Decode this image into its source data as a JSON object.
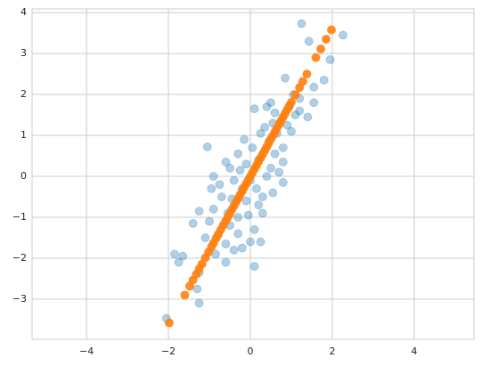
{
  "chart_data": {
    "type": "scatter",
    "xlim": [
      -5.33,
      5.46
    ],
    "ylim": [
      -3.98,
      4.09
    ],
    "xticks": [
      {
        "value": -4,
        "label": "−4"
      },
      {
        "value": -2,
        "label": "−2"
      },
      0,
      2,
      4
    ],
    "yticks": [
      {
        "value": -3,
        "label": "−3"
      },
      {
        "value": -2,
        "label": "−2"
      },
      {
        "value": -1,
        "label": "−1"
      },
      0,
      1,
      2,
      3,
      4
    ],
    "grid": true,
    "series": [
      {
        "color": "#1f77b4",
        "alpha": 0.35,
        "x": [
          -2.05,
          1.25,
          2.26,
          1.43,
          1.95,
          1.8,
          1.55,
          1.55,
          1.4,
          1.2,
          0.85,
          -1.05,
          -0.9,
          -0.95,
          -1.25,
          -1.4,
          -1.65,
          -1.75,
          -1.85,
          -1.25,
          -1.25,
          -1.3,
          0.1,
          0.1,
          0.5,
          0.4,
          0.8,
          0.8,
          0.8,
          0.7,
          0.6,
          0.5,
          0.3,
          0.2,
          0.3,
          0.1,
          0.0,
          -0.2,
          -0.4,
          -0.6,
          -0.8,
          -0.5,
          -0.3,
          -0.1,
          -0.2,
          -0.4,
          -0.5,
          -0.6,
          -0.3,
          -0.15,
          0.05,
          0.2,
          0.35,
          0.55,
          0.65,
          0.25,
          -0.1,
          0.0,
          0.15,
          -0.7,
          -0.9,
          -1.0,
          -0.85,
          -0.6,
          -0.3,
          0.4,
          0.55,
          -0.25,
          -0.45,
          0.9,
          1.0,
          1.1,
          0.95,
          1.05,
          -0.05,
          0.25,
          -0.75,
          -1.1,
          -0.55,
          0.45,
          0.6,
          1.2
        ],
        "values": [
          -3.47,
          3.73,
          3.45,
          3.3,
          2.85,
          2.35,
          2.18,
          1.8,
          1.45,
          1.6,
          2.4,
          0.72,
          0.0,
          -0.3,
          -0.85,
          -1.15,
          -1.95,
          -2.1,
          -1.9,
          -2.35,
          -3.1,
          -2.75,
          -2.2,
          1.65,
          1.8,
          1.7,
          0.7,
          0.35,
          -0.15,
          0.1,
          0.55,
          0.2,
          -0.5,
          -0.7,
          -0.9,
          -1.3,
          -1.6,
          -1.75,
          -1.8,
          -1.65,
          -1.45,
          -1.2,
          -1.0,
          -0.6,
          -0.3,
          -0.1,
          0.2,
          0.35,
          0.55,
          0.9,
          0.7,
          0.4,
          1.2,
          1.3,
          1.05,
          1.05,
          0.3,
          -0.1,
          -0.3,
          -0.5,
          -0.8,
          -1.1,
          -1.9,
          -2.1,
          -1.4,
          0.0,
          -0.4,
          0.15,
          -0.55,
          1.25,
          1.1,
          1.5,
          1.7,
          2.0,
          -0.95,
          -1.6,
          -0.2,
          -1.5,
          -0.9,
          0.85,
          1.55,
          1.9
        ]
      },
      {
        "color": "#ff7f0e",
        "alpha": 0.9,
        "x": [
          -1.98,
          -1.6,
          -1.48,
          -1.4,
          -1.32,
          -1.25,
          -1.18,
          -1.1,
          -1.02,
          -0.95,
          -0.9,
          -0.84,
          -0.78,
          -0.72,
          -0.66,
          -0.6,
          -0.55,
          -0.5,
          -0.45,
          -0.4,
          -0.35,
          -0.3,
          -0.25,
          -0.2,
          -0.15,
          -0.1,
          -0.05,
          0,
          0.05,
          0.1,
          0.15,
          0.2,
          0.25,
          0.3,
          0.35,
          0.4,
          0.45,
          0.5,
          0.55,
          0.6,
          0.65,
          0.7,
          0.75,
          0.8,
          0.85,
          0.9,
          0.95,
          1.0,
          1.1,
          1.2,
          1.28,
          1.38,
          1.6,
          1.72,
          1.85,
          1.98
        ],
        "values": [
          -3.58,
          -2.9,
          -2.68,
          -2.53,
          -2.39,
          -2.26,
          -2.14,
          -1.99,
          -1.85,
          -1.72,
          -1.63,
          -1.52,
          -1.41,
          -1.3,
          -1.19,
          -1.09,
          -1.0,
          -0.91,
          -0.81,
          -0.72,
          -0.63,
          -0.54,
          -0.45,
          -0.36,
          -0.27,
          -0.18,
          -0.09,
          0,
          0.09,
          0.18,
          0.27,
          0.36,
          0.45,
          0.54,
          0.63,
          0.72,
          0.81,
          0.91,
          1.0,
          1.09,
          1.18,
          1.27,
          1.36,
          1.45,
          1.54,
          1.63,
          1.72,
          1.81,
          1.99,
          2.17,
          2.32,
          2.5,
          2.9,
          3.11,
          3.35,
          3.58
        ]
      }
    ]
  }
}
